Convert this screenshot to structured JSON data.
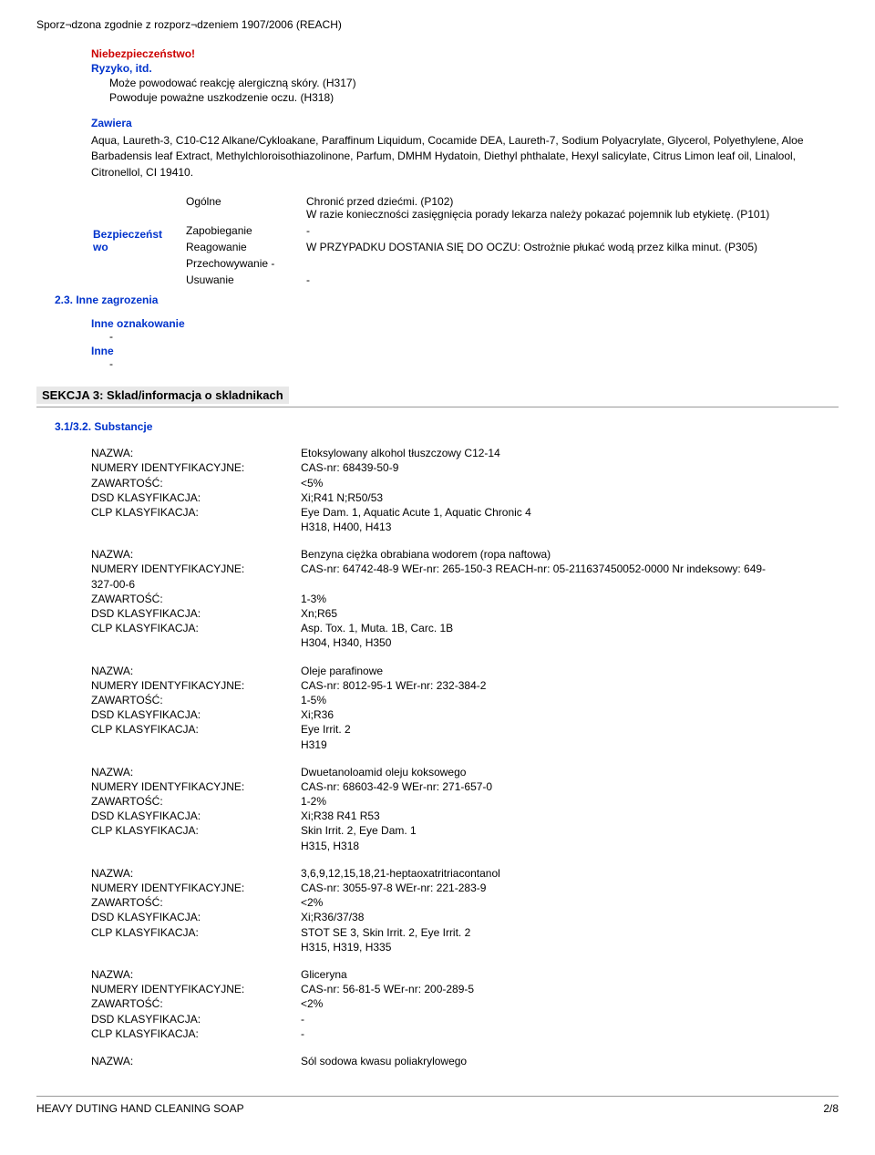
{
  "header": "Sporz¬dzona zgodnie z rozporz¬dzeniem 1907/2006 (REACH)",
  "hazard": {
    "title": "Niebezpieczeństwo!",
    "risk_label": "Ryzyko, itd.",
    "lines": [
      "Może powodować reakcję alergiczną skóry. (H317)",
      "Powoduje poważne uszkodzenie oczu. (H318)"
    ]
  },
  "contains": {
    "label": "Zawiera",
    "text": "Aqua, Laureth-3, C10-C12 Alkane/Cykloakane, Paraffinum Liquidum, Cocamide DEA, Laureth-7, Sodium Polyacrylate, Glycerol, Polyethylene, Aloe Barbadensis leaf Extract, Methylchloroisothiazolinone, Parfum, DMHM Hydatoin, Diethyl phthalate, Hexyl salicylate, Citrus Limon leaf oil, Linalool, Citronellol, CI 19410."
  },
  "safety": {
    "label": "Bezpieczeńst\nwo",
    "rows": [
      {
        "k": "Ogólne",
        "v": "Chronić przed dziećmi. (P102)\nW razie konieczności zasięgnięcia porady lekarza należy pokazać pojemnik lub etykietę. (P101)"
      },
      {
        "k": "Zapobieganie",
        "v": "-"
      },
      {
        "k": "Reagowanie",
        "v": "W PRZYPADKU DOSTANIA SIĘ DO OCZU: Ostrożnie płukać wodą przez kilka minut. (P305)"
      },
      {
        "k": "Przechowywanie",
        "v": "-"
      },
      {
        "k": "Usuwanie",
        "v": "-"
      }
    ]
  },
  "sec23": "2.3. Inne zagrozenia",
  "other_label": "Inne oznakowanie",
  "other_label2": "Inne",
  "dash": "-",
  "section3": {
    "title": "SEKCJA 3: Sklad/informacja o skladnikach",
    "sub": "3.1/3.2. Substancje"
  },
  "labels": {
    "nazwa": "NAZWA:",
    "numery": "NUMERY IDENTYFIKACYJNE:",
    "zawart": "ZAWARTOŚĆ:",
    "dsd": "DSD KLASYFIKACJA:",
    "clp": "CLP KLASYFIKACJA:"
  },
  "substances": [
    {
      "name": "Etoksylowany alkohol tłuszczowy C12-14",
      "ids": "CAS-nr: 68439-50-9",
      "content": "<5%",
      "dsd": "Xi;R41 N;R50/53",
      "clp": "Eye Dam. 1, Aquatic Acute 1, Aquatic Chronic 4\nH318, H400, H413"
    },
    {
      "name": "Benzyna ciężka obrabiana wodorem (ropa naftowa)",
      "ids": "CAS-nr: 64742-48-9 WEr-nr: 265-150-3 REACH-nr: 05-211637450052-0000 Nr indeksowy: 649-327-00-6",
      "ids_wrap": true,
      "content": "1-3%",
      "dsd": "Xn;R65",
      "clp": "Asp. Tox. 1, Muta. 1B, Carc. 1B\nH304, H340, H350"
    },
    {
      "name": "Oleje parafinowe",
      "ids": "CAS-nr: 8012-95-1 WEr-nr: 232-384-2",
      "content": "1-5%",
      "dsd": "Xi;R36",
      "clp": "Eye Irrit. 2\nH319"
    },
    {
      "name": "Dwuetanoloamid oleju koksowego",
      "ids": "CAS-nr: 68603-42-9 WEr-nr: 271-657-0",
      "content": "1-2%",
      "dsd": "Xi;R38 R41 R53",
      "clp": "Skin Irrit. 2, Eye Dam. 1\nH315, H318"
    },
    {
      "name": "3,6,9,12,15,18,21-heptaoxatritriacontanol",
      "ids": "CAS-nr: 3055-97-8 WEr-nr: 221-283-9",
      "content": "<2%",
      "dsd": "Xi;R36/37/38",
      "clp": "STOT SE 3, Skin Irrit. 2, Eye Irrit. 2\nH315, H319, H335"
    },
    {
      "name": "Gliceryna",
      "ids": "CAS-nr: 56-81-5 WEr-nr: 200-289-5",
      "content": "<2%",
      "dsd": " -",
      "clp": " -"
    }
  ],
  "last_nazwa": "Sól sodowa kwasu poliakrylowego",
  "footer": {
    "left": "HEAVY DUTING HAND CLEANING SOAP",
    "right": "2/8"
  }
}
